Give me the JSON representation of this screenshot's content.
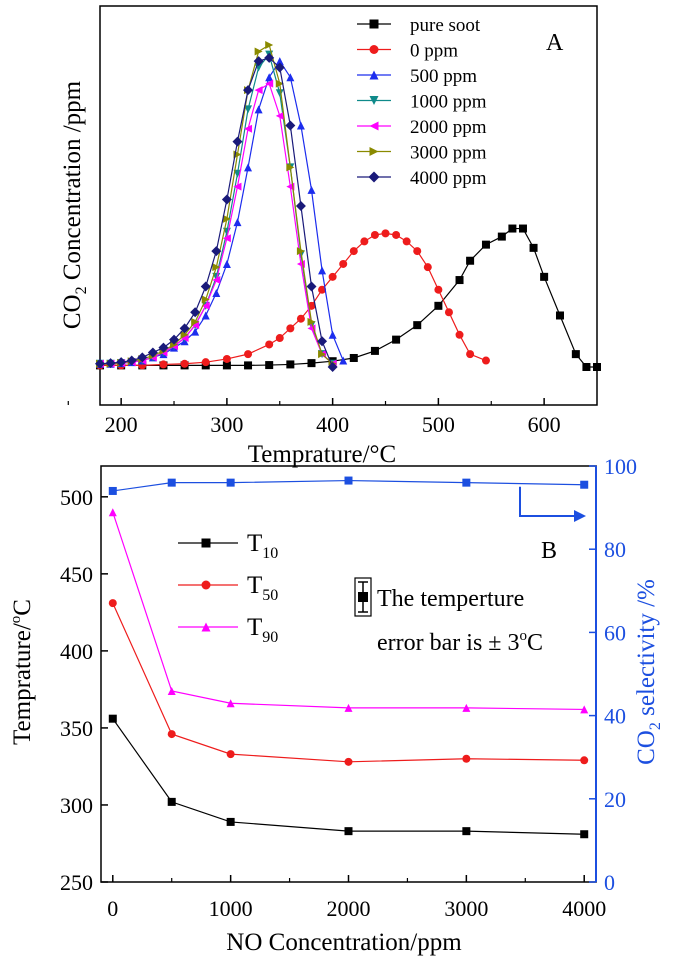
{
  "chart_data": [
    {
      "panel_label": "A",
      "type": "line",
      "xlabel": "Temprature/°C",
      "ylabel_pre": "CO",
      "ylabel_sub": "2",
      "ylabel_post": " Concentration /ppm",
      "xlim": [
        180,
        650
      ],
      "ylim": [
        0,
        1
      ],
      "yticks_labeled": false,
      "xticks": [
        "200",
        "300",
        "400",
        "500",
        "600"
      ],
      "legend_position": "top-right",
      "series": [
        {
          "name": "pure soot",
          "color": "#000000",
          "marker": "square",
          "x": [
            180,
            200,
            220,
            240,
            260,
            280,
            300,
            320,
            340,
            360,
            380,
            400,
            420,
            440,
            460,
            480,
            500,
            520,
            530,
            545,
            560,
            570,
            580,
            590,
            600,
            615,
            630,
            640,
            650
          ],
          "y": [
            0.005,
            0.005,
            0.005,
            0.005,
            0.005,
            0.005,
            0.005,
            0.005,
            0.006,
            0.008,
            0.012,
            0.018,
            0.028,
            0.05,
            0.085,
            0.13,
            0.19,
            0.27,
            0.33,
            0.38,
            0.405,
            0.43,
            0.43,
            0.37,
            0.28,
            0.16,
            0.04,
            0.0,
            0.0
          ]
        },
        {
          "name": "0 ppm",
          "color": "#ee1c1c",
          "marker": "circle",
          "x": [
            180,
            200,
            220,
            240,
            260,
            280,
            300,
            320,
            340,
            350,
            360,
            370,
            380,
            390,
            400,
            410,
            420,
            430,
            440,
            450,
            460,
            470,
            480,
            490,
            500,
            510,
            520,
            530,
            545
          ],
          "y": [
            0.005,
            0.005,
            0.005,
            0.008,
            0.01,
            0.015,
            0.025,
            0.04,
            0.07,
            0.09,
            0.12,
            0.15,
            0.19,
            0.24,
            0.28,
            0.32,
            0.36,
            0.39,
            0.41,
            0.415,
            0.41,
            0.39,
            0.36,
            0.31,
            0.24,
            0.17,
            0.1,
            0.04,
            0.02
          ]
        },
        {
          "name": "500 ppm",
          "color": "#1c2dee",
          "marker": "triangle-up",
          "x": [
            180,
            190,
            200,
            210,
            220,
            230,
            240,
            250,
            260,
            270,
            280,
            290,
            300,
            310,
            320,
            330,
            340,
            350,
            360,
            370,
            380,
            390,
            400,
            410
          ],
          "y": [
            0.01,
            0.01,
            0.012,
            0.015,
            0.02,
            0.03,
            0.04,
            0.06,
            0.08,
            0.11,
            0.16,
            0.23,
            0.32,
            0.45,
            0.62,
            0.8,
            0.9,
            0.95,
            0.9,
            0.75,
            0.55,
            0.3,
            0.1,
            0.02
          ]
        },
        {
          "name": "1000 ppm",
          "color": "#0f8a8a",
          "marker": "triangle-down",
          "x": [
            180,
            190,
            200,
            210,
            220,
            230,
            240,
            250,
            260,
            270,
            280,
            290,
            300,
            310,
            320,
            330,
            340,
            350,
            360,
            370,
            380,
            390,
            400
          ],
          "y": [
            0.01,
            0.01,
            0.012,
            0.015,
            0.02,
            0.03,
            0.045,
            0.065,
            0.09,
            0.13,
            0.19,
            0.28,
            0.42,
            0.6,
            0.8,
            0.93,
            0.97,
            0.85,
            0.62,
            0.35,
            0.13,
            0.04,
            0.01
          ]
        },
        {
          "name": "2000 ppm",
          "color": "#ff00ff",
          "marker": "triangle-left",
          "x": [
            180,
            190,
            200,
            210,
            220,
            230,
            240,
            250,
            260,
            270,
            280,
            290,
            300,
            310,
            320,
            330,
            340,
            350,
            360,
            370,
            380,
            390,
            400
          ],
          "y": [
            0.01,
            0.01,
            0.012,
            0.015,
            0.02,
            0.03,
            0.045,
            0.065,
            0.09,
            0.13,
            0.19,
            0.27,
            0.4,
            0.56,
            0.74,
            0.86,
            0.88,
            0.78,
            0.56,
            0.32,
            0.12,
            0.04,
            0.01
          ]
        },
        {
          "name": "3000 ppm",
          "color": "#8a8a00",
          "marker": "triangle-right",
          "x": [
            180,
            190,
            200,
            210,
            220,
            230,
            240,
            250,
            260,
            270,
            280,
            290,
            300,
            310,
            320,
            330,
            340,
            350,
            360,
            370,
            380,
            390,
            400
          ],
          "y": [
            0.01,
            0.01,
            0.013,
            0.018,
            0.025,
            0.035,
            0.05,
            0.07,
            0.1,
            0.14,
            0.21,
            0.31,
            0.46,
            0.66,
            0.86,
            0.98,
            1.0,
            0.88,
            0.62,
            0.36,
            0.14,
            0.04,
            0.01
          ]
        },
        {
          "name": "4000 ppm",
          "color": "#1a1a7a",
          "marker": "diamond",
          "x": [
            180,
            190,
            200,
            210,
            220,
            230,
            240,
            250,
            260,
            270,
            280,
            290,
            300,
            310,
            320,
            330,
            340,
            350,
            360,
            370,
            380,
            390,
            400
          ],
          "y": [
            0.01,
            0.012,
            0.015,
            0.02,
            0.03,
            0.045,
            0.06,
            0.085,
            0.12,
            0.17,
            0.25,
            0.36,
            0.52,
            0.7,
            0.86,
            0.95,
            0.96,
            0.93,
            0.75,
            0.5,
            0.25,
            0.08,
            0.0
          ]
        }
      ]
    },
    {
      "panel_label": "B",
      "type": "line",
      "xlabel": "NO Concentration/ppm",
      "ylabel_left_pre": "Temprature/",
      "ylabel_left_sup": "o",
      "ylabel_left_post": "C",
      "ylabel_right_pre": "CO",
      "ylabel_right_sub": "2",
      "ylabel_right_post": " selectivity /%",
      "xlim": [
        -100,
        4100
      ],
      "ylim_left": [
        250,
        520
      ],
      "ylim_right": [
        0,
        100
      ],
      "xticks": [
        0,
        1000,
        2000,
        3000,
        4000
      ],
      "yticks_left": [
        250,
        300,
        350,
        400,
        450,
        500
      ],
      "yticks_right": [
        0,
        20,
        40,
        60,
        80,
        100
      ],
      "legend_position": "top-left",
      "annotation_pre": "The temperture",
      "annotation_line2": "error bar is ± 3",
      "annotation_sup": "o",
      "annotation_post": "C",
      "series": [
        {
          "name_main": "T",
          "name_sub": "10",
          "color": "#000000",
          "marker": "square",
          "axis": "left",
          "x": [
            0,
            500,
            1000,
            2000,
            3000,
            4000
          ],
          "y": [
            356,
            302,
            289,
            283,
            283,
            281
          ]
        },
        {
          "name_main": "T",
          "name_sub": "50",
          "color": "#ee1c1c",
          "marker": "circle",
          "axis": "left",
          "x": [
            0,
            500,
            1000,
            2000,
            3000,
            4000
          ],
          "y": [
            431,
            346,
            333,
            328,
            330,
            329
          ]
        },
        {
          "name_main": "T",
          "name_sub": "90",
          "color": "#ff00ff",
          "marker": "triangle-up",
          "axis": "left",
          "x": [
            0,
            500,
            1000,
            2000,
            3000,
            4000
          ],
          "y": [
            490,
            374,
            366,
            363,
            363,
            362
          ]
        },
        {
          "name_main": "",
          "name_sub": "",
          "color": "#1c4fe0",
          "marker": "square",
          "axis": "right",
          "x": [
            0,
            500,
            1000,
            2000,
            3000,
            4000
          ],
          "y": [
            94,
            96,
            96,
            96.5,
            96,
            95.5
          ]
        }
      ]
    }
  ]
}
